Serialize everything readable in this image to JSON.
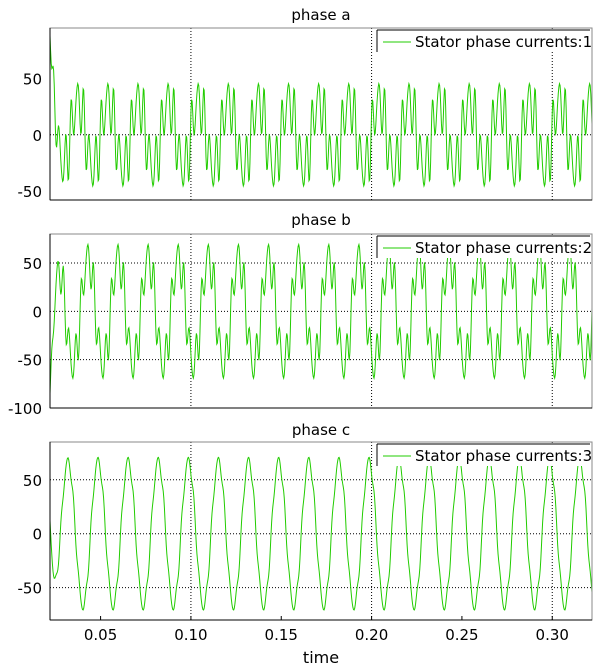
{
  "chart_data": {
    "type": "line",
    "xlabel": "time",
    "x_range": [
      0.022,
      0.322
    ],
    "x_ticks": [
      0.05,
      0.1,
      0.15,
      0.2,
      0.25,
      0.3
    ],
    "x_tick_labels": [
      "0.05",
      "0.10",
      "0.15",
      "0.20",
      "0.25",
      "0.30"
    ],
    "grid": "dotted",
    "series_color": "#22cc00",
    "legend_position": "top-right",
    "panels": [
      {
        "title": "phase a",
        "legend": "Stator phase currents:1",
        "ylim": [
          -58,
          95
        ],
        "y_ticks": [
          -50,
          0,
          50
        ],
        "y_tick_labels": [
          "-50",
          "0",
          "50"
        ],
        "signal": {
          "fundamental_amplitude": 30,
          "harmonic_amplitude": 22,
          "initial_peak": 88
        },
        "frequency_hz": 60
      },
      {
        "title": "phase b",
        "legend": "Stator phase currents:2",
        "ylim": [
          -100,
          80
        ],
        "y_ticks": [
          -100,
          -50,
          0,
          50
        ],
        "y_tick_labels": [
          "-100",
          "-50",
          "0",
          "50"
        ],
        "signal": {
          "fundamental_amplitude": 55,
          "harmonic_amplitude": 20,
          "initial_peak": -85
        },
        "frequency_hz": 60
      },
      {
        "title": "phase c",
        "legend": "Stator phase currents:3",
        "ylim": [
          -80,
          85
        ],
        "y_ticks": [
          -50,
          0,
          50
        ],
        "y_tick_labels": [
          "-50",
          "0",
          "50"
        ],
        "signal": {
          "fundamental_amplitude": 68,
          "harmonic_amplitude": 4,
          "initial_peak": 12
        },
        "frequency_hz": 60
      }
    ]
  }
}
